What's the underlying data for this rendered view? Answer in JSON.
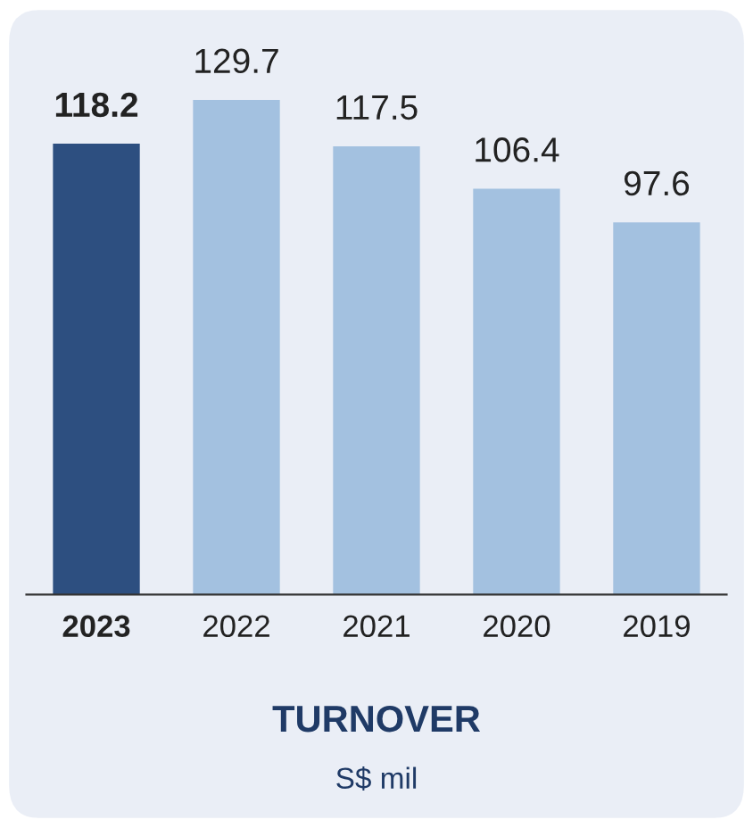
{
  "chart_data": {
    "type": "bar",
    "title": "TURNOVER",
    "subtitle": "S$ mil",
    "categories": [
      "2023",
      "2022",
      "2021",
      "2020",
      "2019"
    ],
    "values": [
      118.2,
      129.7,
      117.5,
      106.4,
      97.6
    ],
    "colors": [
      "#2d4f80",
      "#a3c1e0",
      "#a3c1e0",
      "#a3c1e0",
      "#a3c1e0"
    ],
    "data_labels": true,
    "grid": false,
    "legend": false
  }
}
